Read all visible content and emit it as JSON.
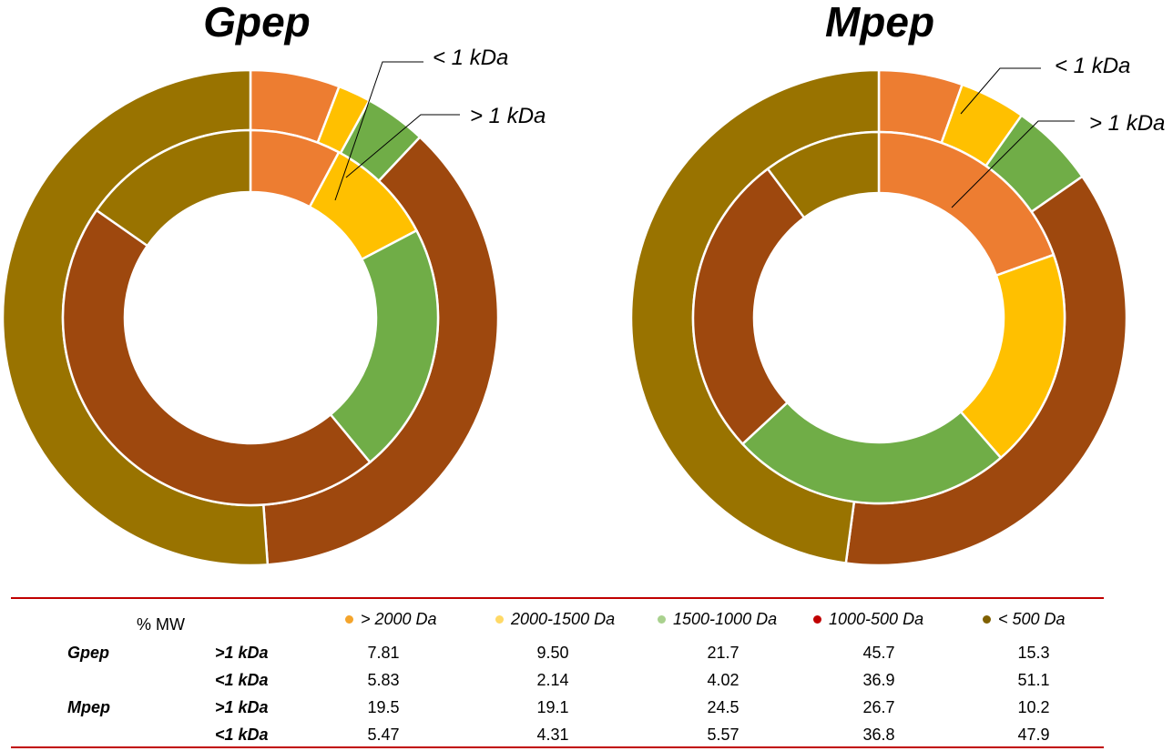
{
  "table": {
    "corner_label": "% MW",
    "columns": [
      {
        "label": "> 2000 Da",
        "color": "#F4A42B"
      },
      {
        "label": "2000-1500 Da",
        "color": "#FFD966"
      },
      {
        "label": "1500-1000 Da",
        "color": "#A9D18E"
      },
      {
        "label": "1000-500 Da",
        "color": "#C00000"
      },
      {
        "label": "< 500 Da",
        "color": "#7F6000"
      }
    ],
    "rows": [
      {
        "group": "Gpep",
        "sub": ">1 kDa",
        "values": [
          "7.81",
          "9.50",
          "21.7",
          "45.7",
          "15.3"
        ]
      },
      {
        "group": "",
        "sub": "<1 kDa",
        "values": [
          "5.83",
          "2.14",
          "4.02",
          "36.9",
          "51.1"
        ]
      },
      {
        "group": "Mpep",
        "sub": ">1 kDa",
        "values": [
          "19.5",
          "19.1",
          "24.5",
          "26.7",
          "10.2"
        ]
      },
      {
        "group": "",
        "sub": "<1 kDa",
        "values": [
          "5.47",
          "4.31",
          "5.57",
          "36.8",
          "47.9"
        ]
      }
    ]
  },
  "chart_data": [
    {
      "type": "pie",
      "subtype": "nested-donut",
      "title": "Gpep",
      "categories": [
        "> 2000 Da",
        "2000-1500 Da",
        "1500-1000 Da",
        "1000-500 Da",
        "< 500 Da"
      ],
      "slice_colors": [
        "#ED7D31",
        "#FFC000",
        "#70AD47",
        "#9E480E",
        "#997300"
      ],
      "series": [
        {
          "name": "< 1 kDa",
          "ring": "outer",
          "values": [
            5.83,
            2.14,
            4.02,
            36.9,
            51.1
          ]
        },
        {
          "name": "> 1 kDa",
          "ring": "inner",
          "values": [
            7.81,
            9.5,
            21.7,
            45.7,
            15.3
          ]
        }
      ]
    },
    {
      "type": "pie",
      "subtype": "nested-donut",
      "title": "Mpep",
      "categories": [
        "> 2000 Da",
        "2000-1500 Da",
        "1500-1000 Da",
        "1000-500 Da",
        "< 500 Da"
      ],
      "slice_colors": [
        "#ED7D31",
        "#FFC000",
        "#70AD47",
        "#9E480E",
        "#997300"
      ],
      "series": [
        {
          "name": "< 1 kDa",
          "ring": "outer",
          "values": [
            5.47,
            4.31,
            5.57,
            36.8,
            47.9
          ]
        },
        {
          "name": "> 1 kDa",
          "ring": "inner",
          "values": [
            19.5,
            19.1,
            24.5,
            26.7,
            10.2
          ]
        }
      ]
    }
  ]
}
